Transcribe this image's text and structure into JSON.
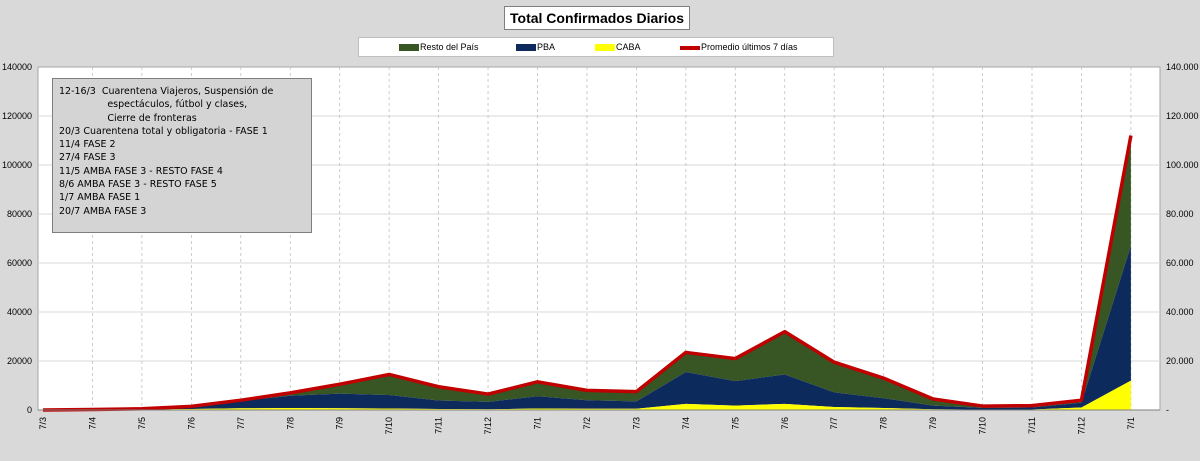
{
  "chart_data": {
    "type": "area",
    "title": "Total Confirmados  Diarios",
    "legend": [
      "Resto del País",
      "PBA",
      "CABA",
      "Promedio últimos 7 días"
    ],
    "colors": {
      "resto": "#375623",
      "pba": "#0d2a5c",
      "caba": "#ffff00",
      "promedio": "#c00000"
    },
    "y_ticks_left": [
      "0",
      "20000",
      "40000",
      "60000",
      "80000",
      "100000",
      "120000",
      "140000"
    ],
    "y_ticks_right": [
      "-",
      "20.000",
      "40.000",
      "60.000",
      "80.000",
      "100.000",
      "120.000",
      "140.000"
    ],
    "ylim": [
      0,
      140000
    ],
    "x_tick_labels": [
      "7/3",
      "7/4",
      "7/5",
      "7/6",
      "7/7",
      "7/8",
      "7/9",
      "7/10",
      "7/11",
      "7/12",
      "7/1",
      "7/2",
      "7/3",
      "7/4",
      "7/5",
      "7/6",
      "7/7",
      "7/8",
      "7/9",
      "7/10",
      "7/11",
      "7/12",
      "7/1"
    ],
    "grid": true,
    "legend_position": "top",
    "x": [
      "2020-03-07",
      "2020-04-07",
      "2020-05-07",
      "2020-06-07",
      "2020-07-07",
      "2020-08-07",
      "2020-09-07",
      "2020-10-07",
      "2020-11-07",
      "2020-12-07",
      "2021-01-07",
      "2021-02-07",
      "2021-03-07",
      "2021-04-07",
      "2021-05-07",
      "2021-06-07",
      "2021-07-07",
      "2021-08-07",
      "2021-09-07",
      "2021-10-07",
      "2021-11-07",
      "2021-12-07",
      "2022-01-07"
    ],
    "series": [
      {
        "name": "CABA",
        "values": [
          0,
          50,
          150,
          400,
          700,
          800,
          700,
          600,
          400,
          300,
          600,
          500,
          500,
          2500,
          1800,
          2500,
          1200,
          800,
          300,
          150,
          200,
          1000,
          12000
        ]
      },
      {
        "name": "PBA",
        "values": [
          0,
          100,
          300,
          1000,
          3000,
          5000,
          6000,
          5500,
          3500,
          3000,
          5000,
          3500,
          3000,
          13000,
          10000,
          12000,
          6000,
          4000,
          1500,
          700,
          800,
          2000,
          55000
        ]
      },
      {
        "name": "Resto del País",
        "values": [
          0,
          50,
          50,
          100,
          300,
          1000,
          3500,
          8000,
          5500,
          3000,
          5500,
          4000,
          3500,
          8000,
          9000,
          17000,
          12000,
          8000,
          2500,
          700,
          800,
          900,
          45000
        ]
      },
      {
        "name": "Promedio últimos 7 días",
        "values": [
          0,
          200,
          500,
          1500,
          4000,
          7000,
          10500,
          14500,
          9500,
          6500,
          11500,
          8000,
          7500,
          23500,
          21000,
          32000,
          19500,
          13000,
          4500,
          1600,
          1800,
          4000,
          112000
        ]
      }
    ]
  },
  "annotation": {
    "lines": [
      "12-16/3  Cuarentena Viajeros, Suspensión de",
      "                espectáculos, fútbol y clases,",
      "                Cierre de fronteras",
      "20/3 Cuarentena total y obligatoria - FASE 1",
      "11/4 FASE 2",
      "27/4 FASE 3",
      "11/5 AMBA FASE 3 - RESTO FASE 4",
      "8/6 AMBA FASE 3 - RESTO FASE 5",
      "1/7 AMBA FASE 1",
      "20/7 AMBA FASE 3"
    ]
  }
}
